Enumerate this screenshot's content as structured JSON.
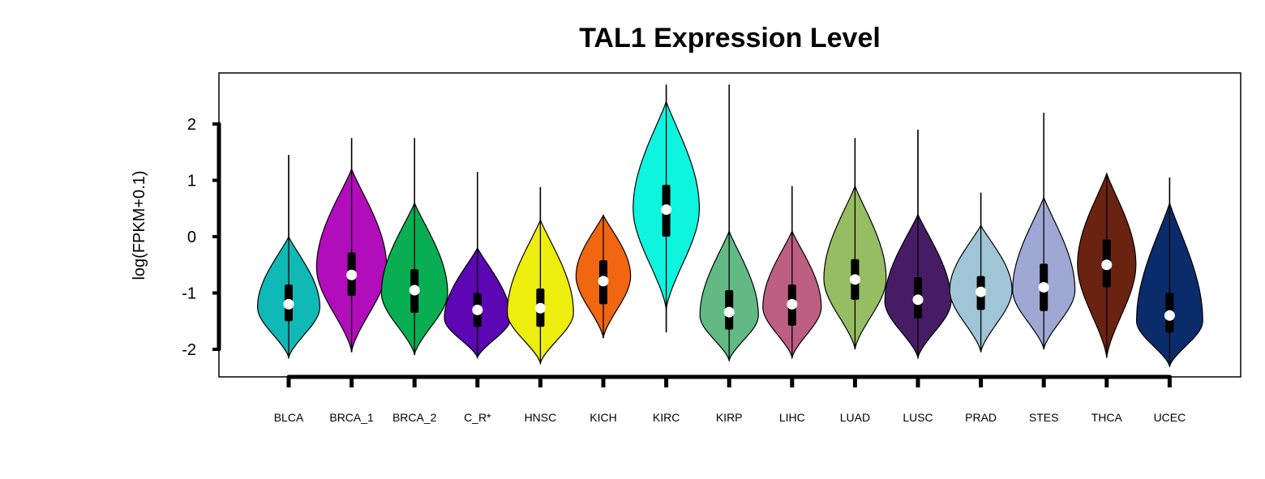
{
  "chart_data": {
    "type": "violin",
    "title": "TAL1 Expression Level",
    "ylabel": "log(FPKM+0.1)",
    "xlabel": "",
    "ylim": [
      -2.5,
      2.9
    ],
    "yticks": [
      2,
      1,
      0,
      -1,
      -2
    ],
    "grid": false,
    "legend": "none",
    "series": [
      {
        "category": "BLCA",
        "color": "#10B9B5",
        "min": -2.15,
        "q1": -1.5,
        "median": -1.2,
        "q3": -0.85,
        "max": 1.45,
        "vmin": -2.15,
        "vmax": 0.0,
        "mode": -1.25,
        "width": 0.8
      },
      {
        "category": "BRCA_1",
        "color": "#B10DBA",
        "min": -2.05,
        "q1": -1.05,
        "median": -0.68,
        "q3": -0.28,
        "max": 1.75,
        "vmin": -2.05,
        "vmax": 1.2,
        "mode": -0.55,
        "width": 0.9
      },
      {
        "category": "BRCA_2",
        "color": "#09AE52",
        "min": -2.1,
        "q1": -1.35,
        "median": -0.95,
        "q3": -0.58,
        "max": 1.75,
        "vmin": -2.1,
        "vmax": 0.6,
        "mode": -1.0,
        "width": 0.85
      },
      {
        "category": "C_R*",
        "color": "#5C07B3",
        "min": -2.15,
        "q1": -1.6,
        "median": -1.3,
        "q3": -1.0,
        "max": 1.15,
        "vmin": -2.15,
        "vmax": -0.2,
        "mode": -1.45,
        "width": 0.85
      },
      {
        "category": "HNSC",
        "color": "#EEEE0E",
        "min": -2.25,
        "q1": -1.6,
        "median": -1.27,
        "q3": -0.92,
        "max": 0.88,
        "vmin": -2.25,
        "vmax": 0.3,
        "mode": -1.35,
        "width": 0.85
      },
      {
        "category": "KICH",
        "color": "#F06611",
        "min": -1.8,
        "q1": -1.2,
        "median": -0.79,
        "q3": -0.42,
        "max": 0.38,
        "vmin": -1.8,
        "vmax": 0.38,
        "mode": -0.7,
        "width": 0.7
      },
      {
        "category": "KIRC",
        "color": "#0FF4DE",
        "min": -1.7,
        "q1": 0.0,
        "median": 0.48,
        "q3": 0.92,
        "max": 2.7,
        "vmin": -1.3,
        "vmax": 2.4,
        "mode": 0.5,
        "width": 0.85
      },
      {
        "category": "KIRP",
        "color": "#62B984",
        "min": -2.2,
        "q1": -1.65,
        "median": -1.34,
        "q3": -0.95,
        "max": 2.7,
        "vmin": -2.2,
        "vmax": 0.1,
        "mode": -1.4,
        "width": 0.75
      },
      {
        "category": "LIHC",
        "color": "#BD5F82",
        "min": -2.15,
        "q1": -1.58,
        "median": -1.2,
        "q3": -0.85,
        "max": 0.9,
        "vmin": -2.15,
        "vmax": 0.1,
        "mode": -1.25,
        "width": 0.75
      },
      {
        "category": "LUAD",
        "color": "#96BD62",
        "min": -2.0,
        "q1": -1.12,
        "median": -0.76,
        "q3": -0.4,
        "max": 1.75,
        "vmin": -2.0,
        "vmax": 0.9,
        "mode": -0.75,
        "width": 0.8
      },
      {
        "category": "LUSC",
        "color": "#461D65",
        "min": -2.15,
        "q1": -1.45,
        "median": -1.12,
        "q3": -0.72,
        "max": 1.9,
        "vmin": -2.15,
        "vmax": 0.4,
        "mode": -1.15,
        "width": 0.85
      },
      {
        "category": "PRAD",
        "color": "#A0C5D6",
        "min": -2.05,
        "q1": -1.3,
        "median": -0.98,
        "q3": -0.7,
        "max": 0.78,
        "vmin": -2.05,
        "vmax": 0.2,
        "mode": -0.95,
        "width": 0.8
      },
      {
        "category": "STES",
        "color": "#9FA8D4",
        "min": -2.0,
        "q1": -1.32,
        "median": -0.9,
        "q3": -0.48,
        "max": 2.2,
        "vmin": -2.0,
        "vmax": 0.7,
        "mode": -0.95,
        "width": 0.8
      },
      {
        "category": "THCA",
        "color": "#6A2311",
        "min": -2.15,
        "q1": -0.9,
        "median": -0.5,
        "q3": -0.05,
        "max": 1.12,
        "vmin": -2.15,
        "vmax": 1.12,
        "mode": -0.5,
        "width": 0.75
      },
      {
        "category": "UCEC",
        "color": "#0A2C6B",
        "min": -2.3,
        "q1": -1.7,
        "median": -1.4,
        "q3": -1.0,
        "max": 1.05,
        "vmin": -2.3,
        "vmax": 0.6,
        "mode": -1.5,
        "width": 0.85
      }
    ]
  }
}
